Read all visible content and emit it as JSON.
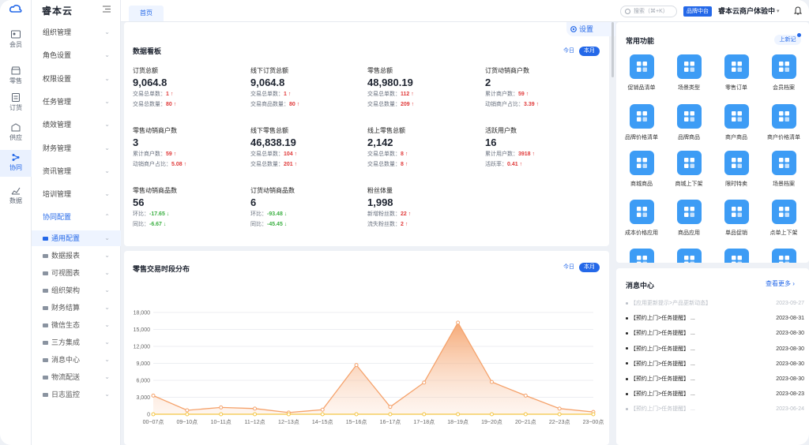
{
  "rail": [
    {
      "label": "会员",
      "icon": "member-icon"
    },
    {
      "label": "零售",
      "icon": "retail-icon"
    },
    {
      "label": "订货",
      "icon": "order-icon"
    },
    {
      "label": "供应",
      "icon": "supply-icon"
    },
    {
      "label": "协同",
      "icon": "collab-icon",
      "active": true
    },
    {
      "label": "数据",
      "icon": "data-icon"
    }
  ],
  "menu": {
    "brand": "睿本云",
    "items": [
      {
        "label": "组织管理"
      },
      {
        "label": "角色设置"
      },
      {
        "label": "权限设置"
      },
      {
        "label": "任务管理"
      },
      {
        "label": "绩效管理"
      },
      {
        "label": "财务管理"
      },
      {
        "label": "资讯管理"
      },
      {
        "label": "培训管理"
      },
      {
        "label": "协同配置",
        "open": true
      }
    ],
    "sub_items": [
      {
        "label": "通用配置",
        "active": true
      },
      {
        "label": "数据报表"
      },
      {
        "label": "可视图表"
      },
      {
        "label": "组织架构"
      },
      {
        "label": "财务结算"
      },
      {
        "label": "微信生态"
      },
      {
        "label": "三方集成"
      },
      {
        "label": "消息中心"
      },
      {
        "label": "物流配送"
      },
      {
        "label": "日志监控"
      }
    ]
  },
  "topbar": {
    "home_tab": "首页",
    "search_placeholder": "搜索（⌘+K）",
    "brand_badge": "品牌中台",
    "tenant": "睿本云商户体验中",
    "accent": "#2468e8"
  },
  "dashboard": {
    "title": "数据看板",
    "settings": "设置",
    "seg": [
      "今日",
      "本月"
    ],
    "metrics": [
      {
        "label": "订货总额",
        "value": "9,064.8",
        "subs": [
          [
            "交易总单数：",
            "1",
            "up"
          ],
          [
            "交易总数量：",
            "80",
            "up"
          ]
        ]
      },
      {
        "label": "线下订货总额",
        "value": "9,064.8",
        "subs": [
          [
            "交易总单数：",
            "1",
            "up"
          ],
          [
            "交易商品数量：",
            "80",
            "up"
          ]
        ]
      },
      {
        "label": "零售总额",
        "value": "48,980.19",
        "subs": [
          [
            "交易总单数：",
            "112",
            "up"
          ],
          [
            "交易总数量：",
            "209",
            "up"
          ]
        ]
      },
      {
        "label": "订货动销商户数",
        "value": "2",
        "subs": [
          [
            "累计商户数：",
            "59",
            "up"
          ],
          [
            "动销商户占比：",
            "3.39",
            "up"
          ]
        ]
      },
      {
        "label": "零售动销商户数",
        "value": "3",
        "subs": [
          [
            "累计商户数：",
            "59",
            "up"
          ],
          [
            "动销商户占比：",
            "5.08",
            "up"
          ]
        ]
      },
      {
        "label": "线下零售总额",
        "value": "46,838.19",
        "subs": [
          [
            "交易总单数：",
            "104",
            "up"
          ],
          [
            "交易总数量：",
            "201",
            "up"
          ]
        ]
      },
      {
        "label": "线上零售总额",
        "value": "2,142",
        "subs": [
          [
            "交易总单数：",
            "8",
            "up"
          ],
          [
            "交易总数量：",
            "8",
            "up"
          ]
        ]
      },
      {
        "label": "活跃用户数",
        "value": "16",
        "subs": [
          [
            "累计用户数：",
            "3918",
            "up"
          ],
          [
            "活跃率：",
            "0.41",
            "up"
          ]
        ]
      },
      {
        "label": "零售动销商品数",
        "value": "56",
        "subs": [
          [
            "环比：",
            "-17.65",
            "down"
          ],
          [
            "同比：",
            "-6.67",
            "down"
          ]
        ]
      },
      {
        "label": "订货动销商品数",
        "value": "6",
        "subs": [
          [
            "环比：",
            "-93.48",
            "down"
          ],
          [
            "同比：",
            "-45.45",
            "down"
          ]
        ]
      },
      {
        "label": "粉丝体量",
        "value": "1,998",
        "subs": [
          [
            "新增粉丝数：",
            "22",
            "up"
          ],
          [
            "流失粉丝数：",
            "2",
            "up"
          ]
        ]
      }
    ]
  },
  "chart_data": {
    "type": "line",
    "title": "零售交易时段分布",
    "seg": [
      "今日",
      "本月"
    ],
    "categories": [
      "00~07点",
      "09~10点",
      "10~11点",
      "11~12点",
      "12~13点",
      "14~15点",
      "15~16点",
      "16~17点",
      "17~18点",
      "18~19点",
      "19~20点",
      "20~21点",
      "22~23点",
      "23~00点"
    ],
    "y_ticks": [
      "18,000",
      "15,000",
      "12,000",
      "9,000",
      "6,000",
      "3,000",
      "0"
    ],
    "ylim": [
      0,
      18000
    ],
    "series": [
      {
        "values": [
          3300,
          700,
          1200,
          1000,
          300,
          800,
          8700,
          1300,
          5600,
          16200,
          5700,
          3300,
          1000,
          400
        ],
        "color": "#f5a26b"
      },
      {
        "values": [
          0,
          0,
          0,
          0,
          0,
          0,
          0,
          0,
          0,
          0,
          0,
          0,
          0,
          0
        ],
        "color": "#f4c542"
      }
    ],
    "grid": true
  },
  "common": {
    "title": "常用功能",
    "new_btn": "上新记",
    "items": [
      {
        "label": "促销品清单",
        "icon": "promo-list-icon"
      },
      {
        "label": "场景类型",
        "icon": "scene-type-icon"
      },
      {
        "label": "零售订单",
        "icon": "retail-order-icon"
      },
      {
        "label": "会员档案",
        "icon": "member-profile-icon"
      },
      {
        "label": "品牌价格清单",
        "icon": "brand-price-icon"
      },
      {
        "label": "品牌商品",
        "icon": "brand-goods-icon"
      },
      {
        "label": "商户商品",
        "icon": "merchant-goods-icon"
      },
      {
        "label": "商户价格清单",
        "icon": "merchant-price-icon"
      },
      {
        "label": "商城商品",
        "icon": "mall-goods-icon"
      },
      {
        "label": "商城上下架",
        "icon": "mall-shelf-icon"
      },
      {
        "label": "限时特卖",
        "icon": "flash-sale-icon"
      },
      {
        "label": "场景档案",
        "icon": "scene-profile-icon"
      },
      {
        "label": "成本价格应用",
        "icon": "cost-price-icon"
      },
      {
        "label": "商品应用",
        "icon": "goods-app-icon"
      },
      {
        "label": "单品促销",
        "icon": "item-promo-icon"
      },
      {
        "label": "点单上下架",
        "icon": "order-shelf-icon"
      }
    ]
  },
  "messages": {
    "title": "消息中心",
    "more": "查看更多",
    "items": [
      {
        "text": "【应用更新提示>产品更新动态】",
        "date": "2023-09-27",
        "faded": true
      },
      {
        "text": "【预约上门>任务提醒】 ...",
        "date": "2023-08-31"
      },
      {
        "text": "【预约上门>任务提醒】 ...",
        "date": "2023-08-30"
      },
      {
        "text": "【预约上门>任务提醒】 ...",
        "date": "2023-08-30"
      },
      {
        "text": "【预约上门>任务提醒】 ...",
        "date": "2023-08-30"
      },
      {
        "text": "【预约上门>任务提醒】 ...",
        "date": "2023-08-30"
      },
      {
        "text": "【预约上门>任务提醒】 ...",
        "date": "2023-08-23"
      },
      {
        "text": "【预约上门>任务提醒】 ...",
        "date": "2023-06-24",
        "faded": true
      }
    ]
  }
}
